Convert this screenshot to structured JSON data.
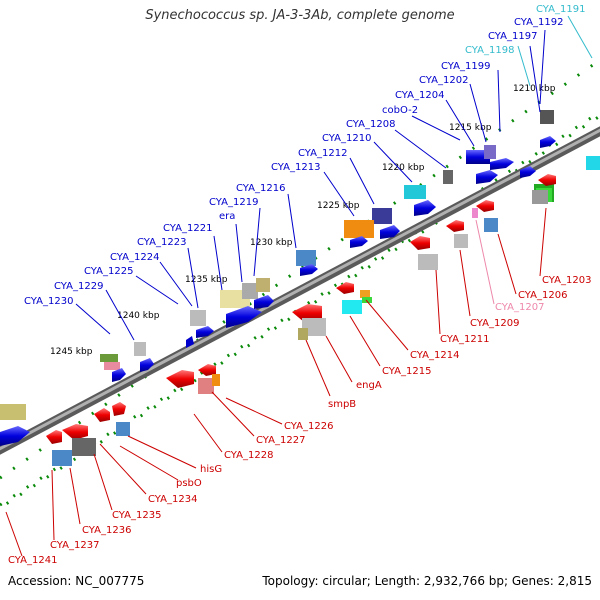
{
  "title": "Synechococcus sp. JA-3-3Ab, complete genome",
  "footer": {
    "accession": "Accession: NC_007775",
    "summary": "Topology: circular; Length: 2,932,766 bp; Genes: 2,815"
  },
  "colors": {
    "backbone": "#808080",
    "forward_label": "#0000cc",
    "reverse_label": "#cc0000",
    "rna_label_cyan": "#33bbcc",
    "rna_label_pink": "#ee88aa",
    "tick": "#0a8a0a"
  },
  "ticks": [
    "1210 kbp",
    "1215 kbp",
    "1220 kbp",
    "1225 kbp",
    "1230 kbp",
    "1235 kbp",
    "1240 kbp",
    "1245 kbp"
  ],
  "top_labels": [
    {
      "text": "CYA_1191",
      "color": "#33bbcc"
    },
    {
      "text": "CYA_1192",
      "color": "#0000cc"
    },
    {
      "text": "CYA_1197",
      "color": "#0000cc"
    },
    {
      "text": "CYA_1198",
      "color": "#33bbcc"
    },
    {
      "text": "CYA_1199",
      "color": "#0000cc"
    },
    {
      "text": "CYA_1202",
      "color": "#0000cc"
    },
    {
      "text": "CYA_1204",
      "color": "#0000cc"
    },
    {
      "text": "cobO-2",
      "color": "#0000cc"
    },
    {
      "text": "CYA_1208",
      "color": "#0000cc"
    },
    {
      "text": "CYA_1210",
      "color": "#0000cc"
    },
    {
      "text": "CYA_1212",
      "color": "#0000cc"
    },
    {
      "text": "CYA_1213",
      "color": "#0000cc"
    },
    {
      "text": "CYA_1216",
      "color": "#0000cc"
    },
    {
      "text": "CYA_1219",
      "color": "#0000cc"
    },
    {
      "text": "era",
      "color": "#0000cc"
    },
    {
      "text": "CYA_1221",
      "color": "#0000cc"
    },
    {
      "text": "CYA_1223",
      "color": "#0000cc"
    },
    {
      "text": "CYA_1224",
      "color": "#0000cc"
    },
    {
      "text": "CYA_1225",
      "color": "#0000cc"
    },
    {
      "text": "CYA_1229",
      "color": "#0000cc"
    },
    {
      "text": "CYA_1230",
      "color": "#0000cc"
    }
  ],
  "bottom_labels": [
    {
      "text": "CYA_1203",
      "color": "#cc0000"
    },
    {
      "text": "CYA_1206",
      "color": "#cc0000"
    },
    {
      "text": "CYA_1207",
      "color": "#ee88aa"
    },
    {
      "text": "CYA_1209",
      "color": "#cc0000"
    },
    {
      "text": "CYA_1211",
      "color": "#cc0000"
    },
    {
      "text": "CYA_1214",
      "color": "#cc0000"
    },
    {
      "text": "CYA_1215",
      "color": "#cc0000"
    },
    {
      "text": "engA",
      "color": "#cc0000"
    },
    {
      "text": "smpB",
      "color": "#cc0000"
    },
    {
      "text": "CYA_1226",
      "color": "#cc0000"
    },
    {
      "text": "CYA_1227",
      "color": "#cc0000"
    },
    {
      "text": "CYA_1228",
      "color": "#cc0000"
    },
    {
      "text": "hisG",
      "color": "#cc0000"
    },
    {
      "text": "psbO",
      "color": "#cc0000"
    },
    {
      "text": "CYA_1234",
      "color": "#cc0000"
    },
    {
      "text": "CYA_1235",
      "color": "#cc0000"
    },
    {
      "text": "CYA_1236",
      "color": "#cc0000"
    },
    {
      "text": "CYA_1237",
      "color": "#cc0000"
    },
    {
      "text": "CYA_1241",
      "color": "#cc0000"
    }
  ]
}
